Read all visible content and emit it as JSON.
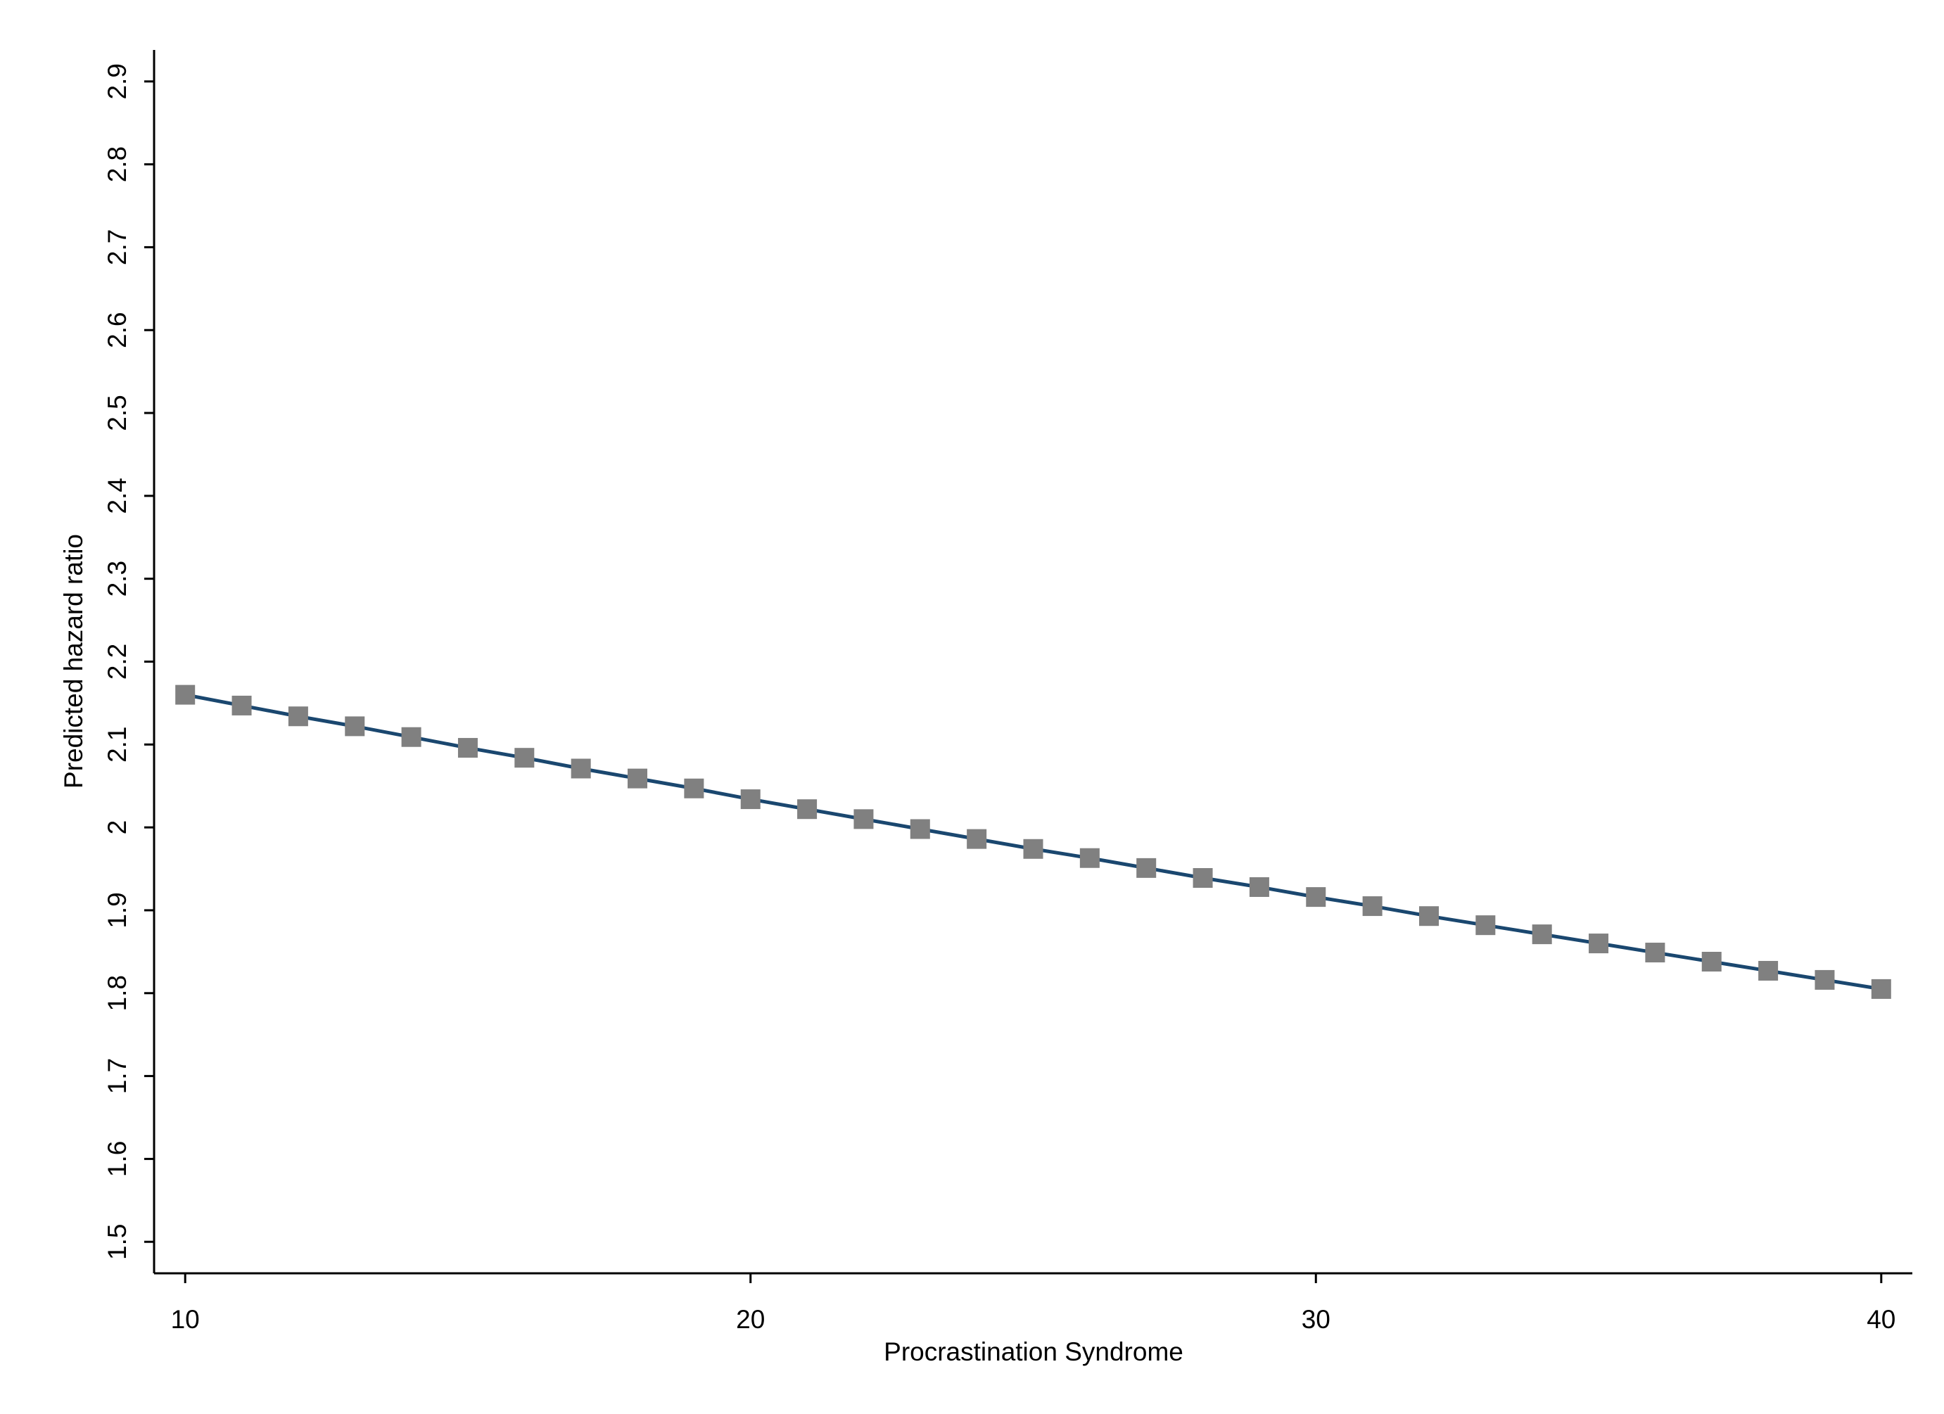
{
  "chart_data": {
    "type": "line",
    "x_label": "Procrastination Syndrome",
    "y_label": "Predicted hazard ratio",
    "x": [
      10,
      11,
      12,
      13,
      14,
      15,
      16,
      17,
      18,
      19,
      20,
      21,
      22,
      23,
      24,
      25,
      26,
      27,
      28,
      29,
      30,
      31,
      32,
      33,
      34,
      35,
      36,
      37,
      38,
      39,
      40
    ],
    "series": [
      {
        "color": "#1a476f",
        "marker_color": "#808080",
        "values": [
          2.16,
          2.147,
          2.134,
          2.122,
          2.109,
          2.096,
          2.084,
          2.071,
          2.059,
          2.047,
          2.034,
          2.022,
          2.01,
          1.998,
          1.986,
          1.974,
          1.963,
          1.951,
          1.939,
          1.928,
          1.916,
          1.905,
          1.893,
          1.882,
          1.871,
          1.86,
          1.849,
          1.838,
          1.827,
          1.816,
          1.805
        ]
      }
    ],
    "xlim": [
      9.45,
      40.55
    ],
    "xticks": [
      10,
      20,
      30,
      40
    ],
    "ylim": [
      1.462,
      2.938
    ],
    "yticks": [
      1.5,
      1.6,
      1.7,
      1.8,
      1.9,
      2,
      2.1,
      2.2,
      2.3,
      2.4,
      2.5,
      2.6,
      2.7,
      2.8,
      2.9
    ],
    "grid": false
  }
}
